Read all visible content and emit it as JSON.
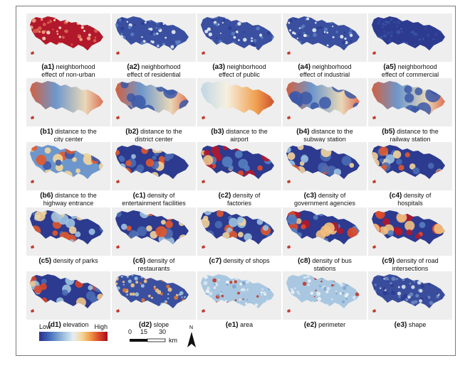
{
  "panels": [
    {
      "id": "(a1)",
      "l1": "neighborhood",
      "l2": "effect of non-urban",
      "style": "red"
    },
    {
      "id": "(a2)",
      "l1": "neighborhood",
      "l2": "effect of residential",
      "style": "bluedots"
    },
    {
      "id": "(a3)",
      "l1": "neighborhood",
      "l2": "effect of public",
      "style": "bluedots"
    },
    {
      "id": "(a4)",
      "l1": "neighborhood",
      "l2": "effect of industrial",
      "style": "bluedots"
    },
    {
      "id": "(a5)",
      "l1": "neighborhood",
      "l2": "effect of commercial",
      "style": "blue"
    },
    {
      "id": "(b1)",
      "l1": "distance to the",
      "l2": "city center",
      "style": "gradient"
    },
    {
      "id": "(b2)",
      "l1": "distance to the",
      "l2": "district center",
      "style": "gradientspots"
    },
    {
      "id": "(b3)",
      "l1": "distance to the",
      "l2": "airport",
      "style": "gradient2"
    },
    {
      "id": "(b4)",
      "l1": "distance to the",
      "l2": "subway station",
      "style": "gradientspots"
    },
    {
      "id": "(b5)",
      "l1": "distance to the",
      "l2": "railway station",
      "style": "gradientspots"
    },
    {
      "id": "(b6)",
      "l1": "distance to the",
      "l2": "highway entrance",
      "style": "patchy"
    },
    {
      "id": "(c1)",
      "l1": "density of",
      "l2": "entertainment facilities",
      "style": "hot"
    },
    {
      "id": "(c2)",
      "l1": "density of",
      "l2": "factories",
      "style": "hot2"
    },
    {
      "id": "(c3)",
      "l1": "density of",
      "l2": "government agencies",
      "style": "hot"
    },
    {
      "id": "(c4)",
      "l1": "density of",
      "l2": "hospitals",
      "style": "hot"
    },
    {
      "id": "(c5)",
      "l1": "density of parks",
      "l2": "",
      "style": "hot"
    },
    {
      "id": "(c6)",
      "l1": "density of",
      "l2": "restaurants",
      "style": "hot"
    },
    {
      "id": "(c7)",
      "l1": "density of shops",
      "l2": "",
      "style": "hot"
    },
    {
      "id": "(c8)",
      "l1": "density of bus",
      "l2": "stations",
      "style": "hot2"
    },
    {
      "id": "(c9)",
      "l1": "density of road",
      "l2": "intersections",
      "style": "hot2"
    },
    {
      "id": "(d1)",
      "l1": "elevation",
      "l2": "",
      "style": "elev"
    },
    {
      "id": "(d2)",
      "l1": "slope",
      "l2": "",
      "style": "slope"
    },
    {
      "id": "(e1)",
      "l1": "area",
      "l2": "",
      "style": "pale"
    },
    {
      "id": "(e2)",
      "l1": "perimeter",
      "l2": "",
      "style": "pale"
    },
    {
      "id": "(e3)",
      "l1": "shape",
      "l2": "",
      "style": "shape"
    }
  ],
  "legend": {
    "low": "Low",
    "high": "High"
  },
  "scalebar": {
    "t0": "0",
    "t1": "15",
    "t2": "30",
    "unit": "km"
  },
  "north": "N"
}
